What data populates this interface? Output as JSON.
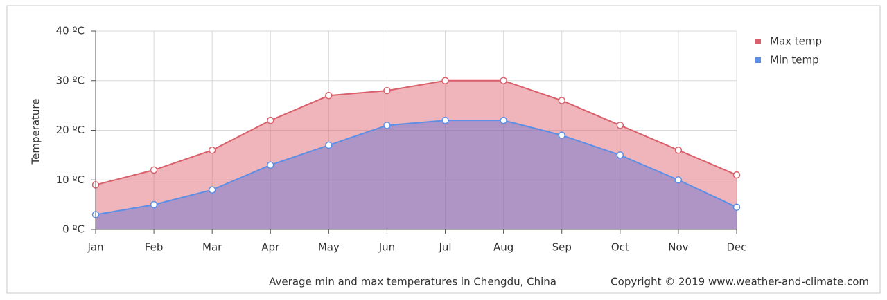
{
  "chart_data": {
    "type": "area",
    "y_label": "Temperature",
    "categories": [
      "Jan",
      "Feb",
      "Mar",
      "Apr",
      "May",
      "Jun",
      "Jul",
      "Aug",
      "Sep",
      "Oct",
      "Nov",
      "Dec"
    ],
    "series": [
      {
        "name": "Max temp",
        "color": "#d9606b",
        "fill": "rgba(220,90,105,0.45)",
        "values": [
          9,
          12,
          16,
          22,
          27,
          28,
          30,
          30,
          26,
          21,
          16,
          11
        ]
      },
      {
        "name": "Min temp",
        "color": "#5b8ee6",
        "fill": "rgba(95,110,210,0.45)",
        "values": [
          3,
          5,
          8,
          13,
          17,
          21,
          22,
          22,
          19,
          15,
          10,
          4.5
        ]
      }
    ],
    "ylim": [
      0,
      40
    ],
    "yticks": [
      {
        "value": 0,
        "label": "0 ºC"
      },
      {
        "value": 10,
        "label": "10 ºC"
      },
      {
        "value": 20,
        "label": "20 ºC"
      },
      {
        "value": 30,
        "label": "30 ºC"
      },
      {
        "value": 40,
        "label": "40 ºC"
      }
    ],
    "grid": true,
    "legend": "right",
    "caption": "Average min and max temperatures in Chengdu, China",
    "copyright": "Copyright © 2019 www.weather-and-climate.com"
  }
}
